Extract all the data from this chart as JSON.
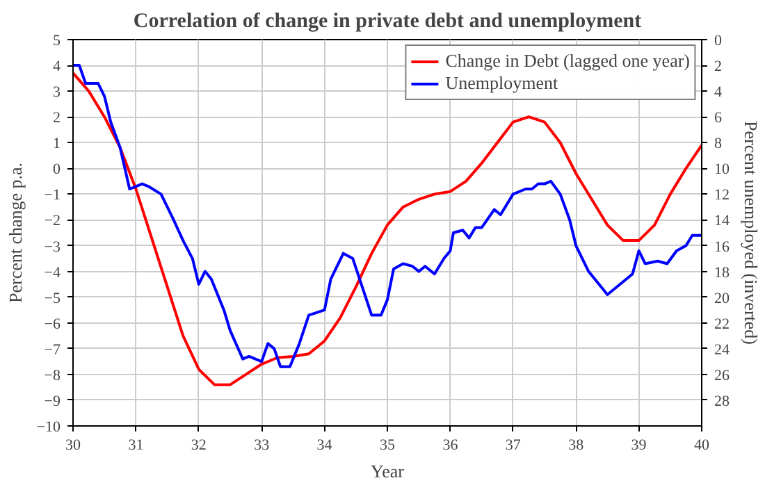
{
  "chart_data": {
    "type": "line",
    "title": "Correlation of change in private debt and unemployment",
    "xlabel": "Year",
    "ylabel": "Percent change p.a.",
    "y2label": "Percent unemployed (inverted)",
    "xlim": [
      30,
      40
    ],
    "xticks": [
      30,
      31,
      32,
      33,
      34,
      35,
      36,
      37,
      38,
      39,
      40
    ],
    "ylim": [
      -10,
      5
    ],
    "yticks": [
      -10,
      -9,
      -8,
      -7,
      -6,
      -5,
      -4,
      -3,
      -2,
      -1,
      0,
      1,
      2,
      3,
      4,
      5
    ],
    "y2lim": [
      30,
      0
    ],
    "y2ticks": [
      0,
      2,
      4,
      6,
      8,
      10,
      12,
      14,
      16,
      18,
      20,
      22,
      24,
      26,
      28
    ],
    "grid": true,
    "legend": "top right",
    "series": [
      {
        "name": "Change in Debt (lagged one year)",
        "color": "#ff0000",
        "x": [
          30,
          30.25,
          30.5,
          30.75,
          31,
          31.25,
          31.5,
          31.75,
          32,
          32.25,
          32.5,
          32.75,
          33,
          33.25,
          33.5,
          33.75,
          34,
          34.25,
          34.5,
          34.75,
          35,
          35.25,
          35.5,
          35.75,
          36,
          36.25,
          36.5,
          36.75,
          37,
          37.25,
          37.5,
          37.75,
          38,
          38.25,
          38.5,
          38.75,
          39,
          39.25,
          39.5,
          39.75,
          40
        ],
        "values": [
          3.7,
          3.0,
          2.0,
          0.8,
          -0.8,
          -2.7,
          -4.6,
          -6.5,
          -7.8,
          -8.4,
          -8.4,
          -8.0,
          -7.6,
          -7.35,
          -7.3,
          -7.2,
          -6.7,
          -5.8,
          -4.6,
          -3.3,
          -2.2,
          -1.5,
          -1.2,
          -1.0,
          -0.9,
          -0.5,
          0.2,
          1.0,
          1.8,
          2.0,
          1.8,
          1.0,
          -0.2,
          -1.2,
          -2.2,
          -2.8,
          -2.8,
          -2.2,
          -1.0,
          0.0,
          0.9
        ]
      },
      {
        "name": "Unemployment",
        "color": "#0000ff",
        "axis": "y2",
        "x": [
          30,
          30.1,
          30.2,
          30.4,
          30.5,
          30.6,
          30.75,
          30.9,
          31,
          31.1,
          31.2,
          31.4,
          31.6,
          31.75,
          31.9,
          32,
          32.1,
          32.2,
          32.4,
          32.5,
          32.7,
          32.8,
          33,
          33.1,
          33.2,
          33.3,
          33.45,
          33.6,
          33.75,
          34,
          34.1,
          34.3,
          34.45,
          34.6,
          34.75,
          34.9,
          35,
          35.1,
          35.25,
          35.4,
          35.5,
          35.6,
          35.75,
          35.9,
          36,
          36.05,
          36.2,
          36.3,
          36.4,
          36.5,
          36.7,
          36.8,
          37,
          37.2,
          37.3,
          37.4,
          37.5,
          37.6,
          37.75,
          37.9,
          38,
          38.2,
          38.5,
          38.75,
          38.9,
          39,
          39.1,
          39.3,
          39.45,
          39.6,
          39.75,
          39.85,
          40
        ],
        "values": [
          2,
          2,
          3.4,
          3.4,
          4.4,
          6.4,
          8.4,
          11.6,
          11.4,
          11.2,
          11.4,
          12,
          14,
          15.6,
          17,
          19,
          18,
          18.6,
          21,
          22.6,
          24.8,
          24.6,
          25,
          23.6,
          24,
          25.4,
          25.4,
          23.6,
          21.4,
          21,
          18.6,
          16.6,
          17,
          19.2,
          21.4,
          21.4,
          20.2,
          17.8,
          17.4,
          17.6,
          18,
          17.6,
          18.2,
          17,
          16.4,
          15,
          14.8,
          15.4,
          14.6,
          14.6,
          13.2,
          13.6,
          12,
          11.6,
          11.6,
          11.2,
          11.2,
          11,
          12,
          14,
          16,
          18,
          19.8,
          18.8,
          18.2,
          16.4,
          17.4,
          17.2,
          17.4,
          16.4,
          16,
          15.2,
          15.2
        ]
      }
    ]
  }
}
